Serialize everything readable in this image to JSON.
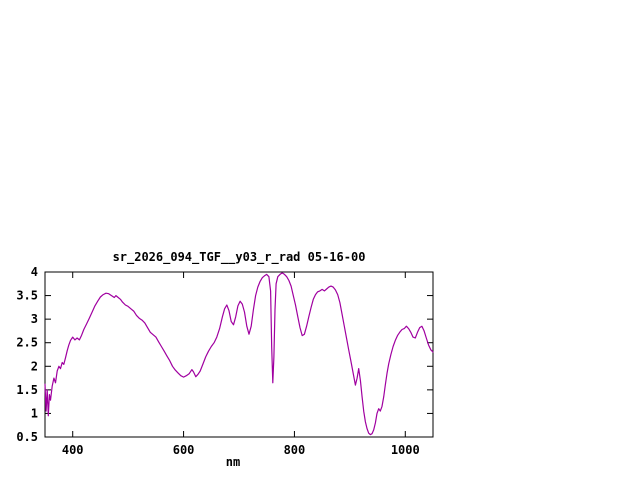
{
  "window": {
    "background": "#ffffff",
    "text_color": "#000000"
  },
  "chart_data": {
    "type": "line",
    "title": "sr_2026_094_TGF__y03_r_rad 05-16-00",
    "xlabel": "nm",
    "ylabel": "",
    "xlim": [
      350,
      1050
    ],
    "ylim": [
      0.5,
      4
    ],
    "grid": false,
    "legend": "none",
    "border_color": "#000000",
    "xticks": {
      "values": [
        400,
        600,
        800,
        1000
      ],
      "labels": [
        "400",
        "600",
        "800",
        "1000"
      ]
    },
    "yticks": {
      "values": [
        0.5,
        1,
        1.5,
        2,
        2.5,
        3,
        3.5,
        4
      ],
      "labels": [
        "0.5",
        "1",
        "1.5",
        "2",
        "2.5",
        "3",
        "3.5",
        "4"
      ]
    },
    "series": [
      {
        "name": "sr_2026_094_TGF__y03_r_rad",
        "color": "#a000a0",
        "points": [
          [
            350,
            1.62
          ],
          [
            352,
            1.05
          ],
          [
            354,
            1.5
          ],
          [
            356,
            0.95
          ],
          [
            358,
            1.4
          ],
          [
            360,
            1.28
          ],
          [
            363,
            1.58
          ],
          [
            366,
            1.75
          ],
          [
            369,
            1.65
          ],
          [
            372,
            1.9
          ],
          [
            375,
            2.0
          ],
          [
            378,
            1.95
          ],
          [
            381,
            2.08
          ],
          [
            384,
            2.04
          ],
          [
            387,
            2.18
          ],
          [
            390,
            2.33
          ],
          [
            393,
            2.45
          ],
          [
            396,
            2.55
          ],
          [
            400,
            2.62
          ],
          [
            404,
            2.56
          ],
          [
            408,
            2.6
          ],
          [
            412,
            2.56
          ],
          [
            416,
            2.66
          ],
          [
            420,
            2.78
          ],
          [
            425,
            2.9
          ],
          [
            430,
            3.02
          ],
          [
            435,
            3.15
          ],
          [
            440,
            3.28
          ],
          [
            445,
            3.38
          ],
          [
            450,
            3.47
          ],
          [
            455,
            3.52
          ],
          [
            460,
            3.55
          ],
          [
            465,
            3.54
          ],
          [
            470,
            3.5
          ],
          [
            475,
            3.46
          ],
          [
            478,
            3.5
          ],
          [
            482,
            3.46
          ],
          [
            486,
            3.42
          ],
          [
            490,
            3.36
          ],
          [
            495,
            3.3
          ],
          [
            500,
            3.27
          ],
          [
            505,
            3.22
          ],
          [
            510,
            3.17
          ],
          [
            515,
            3.08
          ],
          [
            520,
            3.02
          ],
          [
            525,
            2.98
          ],
          [
            530,
            2.92
          ],
          [
            535,
            2.82
          ],
          [
            540,
            2.72
          ],
          [
            545,
            2.67
          ],
          [
            550,
            2.62
          ],
          [
            555,
            2.52
          ],
          [
            560,
            2.42
          ],
          [
            565,
            2.32
          ],
          [
            570,
            2.22
          ],
          [
            575,
            2.12
          ],
          [
            580,
            2.0
          ],
          [
            585,
            1.92
          ],
          [
            590,
            1.86
          ],
          [
            595,
            1.8
          ],
          [
            600,
            1.77
          ],
          [
            605,
            1.8
          ],
          [
            610,
            1.84
          ],
          [
            615,
            1.93
          ],
          [
            618,
            1.88
          ],
          [
            622,
            1.78
          ],
          [
            626,
            1.83
          ],
          [
            630,
            1.9
          ],
          [
            635,
            2.05
          ],
          [
            640,
            2.2
          ],
          [
            645,
            2.32
          ],
          [
            650,
            2.42
          ],
          [
            655,
            2.5
          ],
          [
            660,
            2.62
          ],
          [
            665,
            2.8
          ],
          [
            670,
            3.05
          ],
          [
            674,
            3.22
          ],
          [
            678,
            3.3
          ],
          [
            682,
            3.18
          ],
          [
            686,
            2.95
          ],
          [
            690,
            2.88
          ],
          [
            694,
            3.05
          ],
          [
            698,
            3.28
          ],
          [
            702,
            3.38
          ],
          [
            706,
            3.32
          ],
          [
            710,
            3.15
          ],
          [
            714,
            2.85
          ],
          [
            718,
            2.68
          ],
          [
            722,
            2.85
          ],
          [
            726,
            3.2
          ],
          [
            730,
            3.5
          ],
          [
            734,
            3.68
          ],
          [
            738,
            3.8
          ],
          [
            742,
            3.88
          ],
          [
            746,
            3.92
          ],
          [
            750,
            3.95
          ],
          [
            754,
            3.9
          ],
          [
            757,
            3.6
          ],
          [
            759,
            2.4
          ],
          [
            761,
            1.65
          ],
          [
            763,
            2.2
          ],
          [
            765,
            3.2
          ],
          [
            767,
            3.75
          ],
          [
            770,
            3.9
          ],
          [
            774,
            3.95
          ],
          [
            778,
            3.98
          ],
          [
            782,
            3.95
          ],
          [
            786,
            3.9
          ],
          [
            790,
            3.82
          ],
          [
            794,
            3.7
          ],
          [
            798,
            3.5
          ],
          [
            802,
            3.3
          ],
          [
            806,
            3.05
          ],
          [
            810,
            2.82
          ],
          [
            814,
            2.65
          ],
          [
            818,
            2.68
          ],
          [
            822,
            2.85
          ],
          [
            826,
            3.05
          ],
          [
            830,
            3.25
          ],
          [
            834,
            3.42
          ],
          [
            838,
            3.52
          ],
          [
            842,
            3.58
          ],
          [
            846,
            3.6
          ],
          [
            850,
            3.63
          ],
          [
            854,
            3.6
          ],
          [
            858,
            3.64
          ],
          [
            862,
            3.68
          ],
          [
            866,
            3.7
          ],
          [
            870,
            3.68
          ],
          [
            874,
            3.62
          ],
          [
            878,
            3.52
          ],
          [
            882,
            3.35
          ],
          [
            886,
            3.1
          ],
          [
            890,
            2.85
          ],
          [
            894,
            2.6
          ],
          [
            898,
            2.35
          ],
          [
            902,
            2.1
          ],
          [
            906,
            1.85
          ],
          [
            910,
            1.6
          ],
          [
            913,
            1.75
          ],
          [
            916,
            1.95
          ],
          [
            919,
            1.7
          ],
          [
            922,
            1.35
          ],
          [
            925,
            1.05
          ],
          [
            928,
            0.82
          ],
          [
            931,
            0.68
          ],
          [
            934,
            0.58
          ],
          [
            937,
            0.55
          ],
          [
            940,
            0.57
          ],
          [
            943,
            0.65
          ],
          [
            946,
            0.8
          ],
          [
            949,
            1.0
          ],
          [
            952,
            1.1
          ],
          [
            955,
            1.05
          ],
          [
            958,
            1.15
          ],
          [
            961,
            1.35
          ],
          [
            964,
            1.6
          ],
          [
            967,
            1.85
          ],
          [
            970,
            2.05
          ],
          [
            974,
            2.25
          ],
          [
            978,
            2.42
          ],
          [
            982,
            2.55
          ],
          [
            986,
            2.65
          ],
          [
            990,
            2.72
          ],
          [
            994,
            2.78
          ],
          [
            998,
            2.8
          ],
          [
            1002,
            2.85
          ],
          [
            1006,
            2.8
          ],
          [
            1010,
            2.72
          ],
          [
            1014,
            2.62
          ],
          [
            1018,
            2.6
          ],
          [
            1022,
            2.72
          ],
          [
            1026,
            2.82
          ],
          [
            1030,
            2.85
          ],
          [
            1034,
            2.75
          ],
          [
            1038,
            2.6
          ],
          [
            1042,
            2.45
          ],
          [
            1046,
            2.35
          ],
          [
            1050,
            2.3
          ]
        ]
      }
    ]
  }
}
